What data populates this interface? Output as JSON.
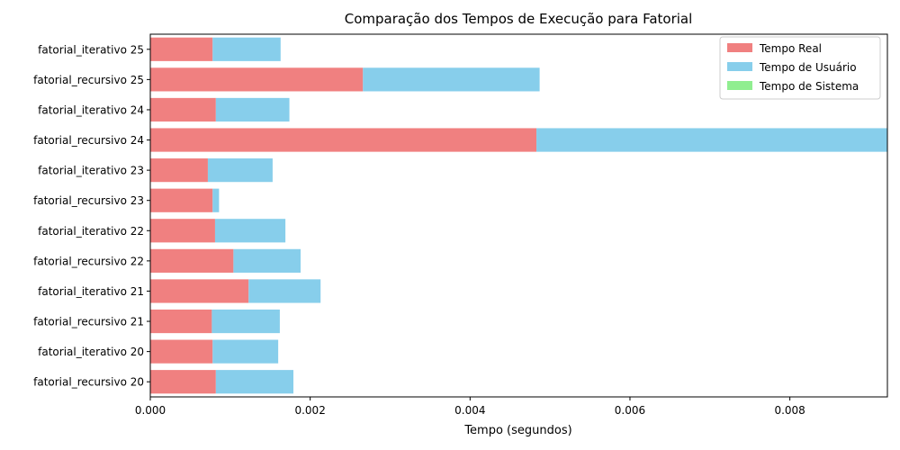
{
  "chart_data": {
    "type": "bar",
    "orientation": "horizontal",
    "stacked": true,
    "title": "Comparação dos Tempos de Execução para Fatorial",
    "xlabel": "Tempo (segundos)",
    "ylabel": "",
    "xlim": [
      0,
      0.00922
    ],
    "x_ticks": [
      "0.000",
      "0.002",
      "0.004",
      "0.006",
      "0.008"
    ],
    "x_tick_values": [
      0,
      0.002,
      0.004,
      0.006,
      0.008
    ],
    "grid": false,
    "legend_position": "top-right",
    "categories": [
      "fatorial_recursivo 20",
      "fatorial_iterativo 20",
      "fatorial_recursivo 21",
      "fatorial_iterativo 21",
      "fatorial_recursivo 22",
      "fatorial_iterativo 22",
      "fatorial_recursivo 23",
      "fatorial_iterativo 23",
      "fatorial_recursivo 24",
      "fatorial_iterativo 24",
      "fatorial_recursivo 25",
      "fatorial_iterativo 25"
    ],
    "series": [
      {
        "name": "Tempo Real",
        "color": "#f08080",
        "values": [
          0.00082,
          0.00078,
          0.00077,
          0.00123,
          0.00104,
          0.00081,
          0.00078,
          0.00072,
          0.00483,
          0.00082,
          0.00266,
          0.00078
        ]
      },
      {
        "name": "Tempo de Usuário",
        "color": "#87ceeb",
        "values": [
          0.00097,
          0.00082,
          0.00085,
          0.0009,
          0.00084,
          0.00088,
          8e-05,
          0.00081,
          0.00439,
          0.00092,
          0.00221,
          0.00085
        ]
      },
      {
        "name": "Tempo de Sistema",
        "color": "#90ee90",
        "values": [
          0,
          0,
          0,
          0,
          0,
          0,
          0,
          0,
          0,
          0,
          0,
          0
        ]
      }
    ]
  }
}
